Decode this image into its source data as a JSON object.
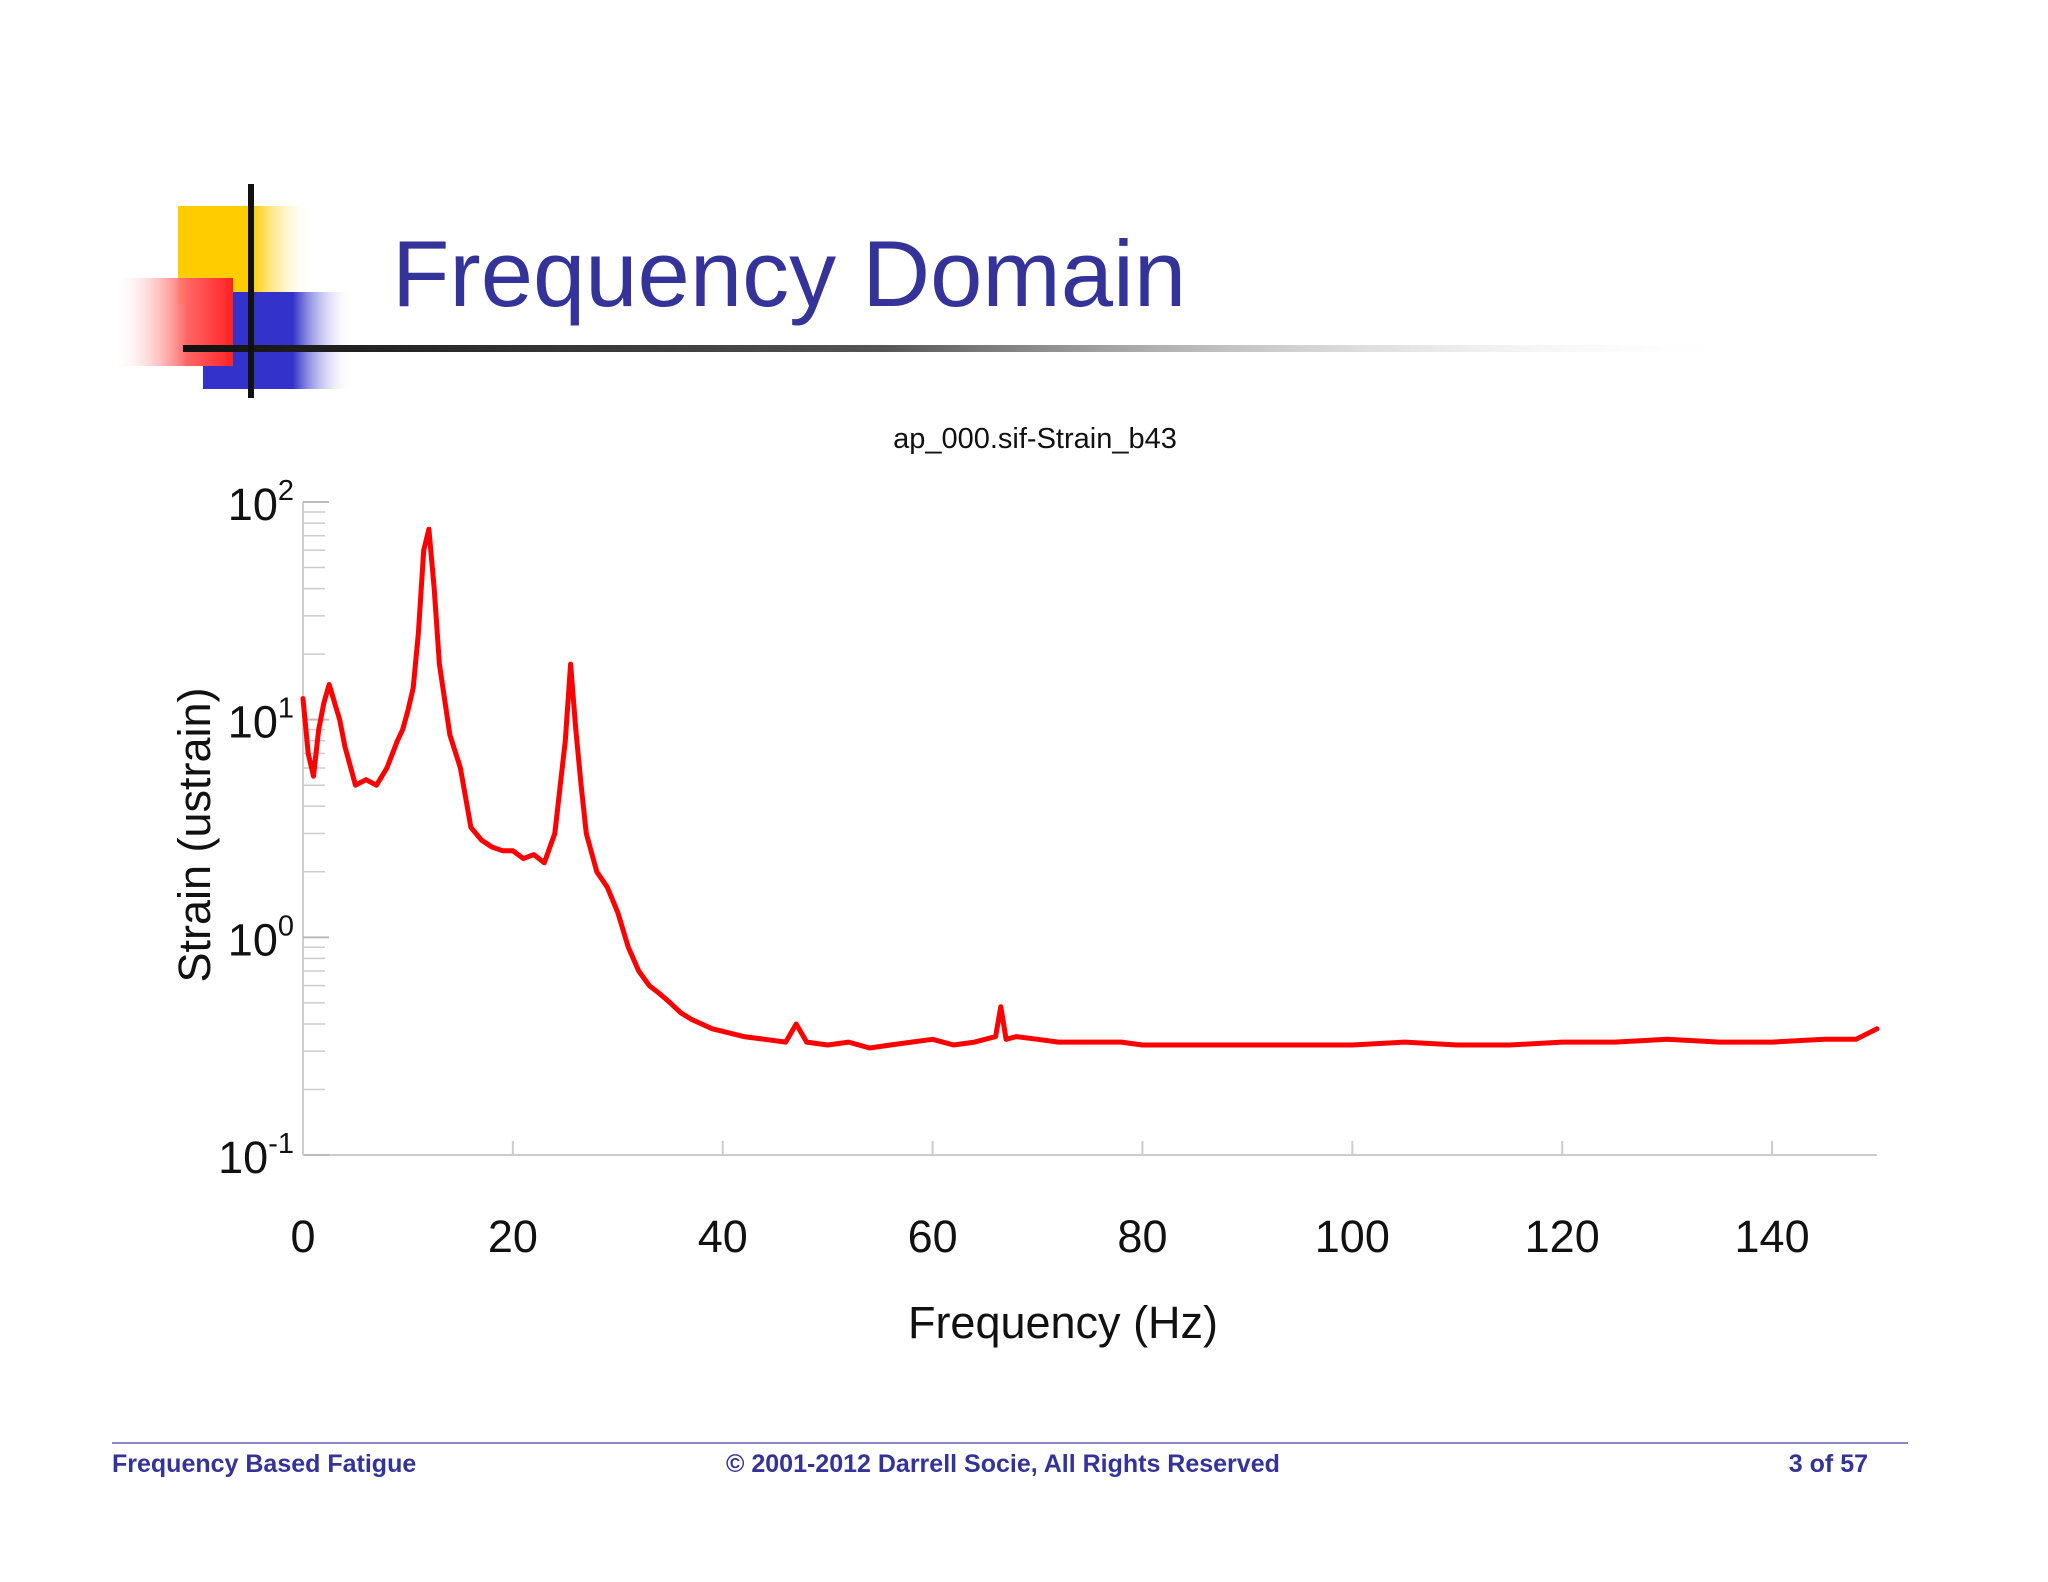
{
  "slide": {
    "title": "Frequency Domain",
    "accent_colors": {
      "title": "#333399",
      "yellow": "#ffcc00",
      "red": "#ff3333",
      "blue": "#3333cc"
    }
  },
  "footer": {
    "left": "Frequency Based Fatigue",
    "center": "© 2001-2012  Darrell Socie, All Rights Reserved",
    "right": "3 of 57"
  },
  "chart_data": {
    "type": "line",
    "title": "ap_000.sif-Strain_b43",
    "xlabel": "Frequency (Hz)",
    "ylabel": "Strain (ustrain)",
    "xlim": [
      0,
      150
    ],
    "ylim": [
      0.1,
      100
    ],
    "y_scale": "log",
    "x_ticks": [
      "0",
      "20",
      "40",
      "60",
      "80",
      "100",
      "120",
      "140"
    ],
    "y_ticks": [
      {
        "base": "10",
        "exp": "2",
        "value": 100
      },
      {
        "base": "10",
        "exp": "1",
        "value": 10
      },
      {
        "base": "10",
        "exp": "0",
        "value": 1
      },
      {
        "base": "10",
        "exp": "-1",
        "value": 0.1
      }
    ],
    "grid": false,
    "series": [
      {
        "color": "#ff0000",
        "x": [
          0,
          0.5,
          1,
          1.5,
          2,
          2.5,
          3,
          3.5,
          4,
          5,
          6,
          7,
          8,
          9,
          9.5,
          10,
          10.5,
          11,
          11.5,
          12,
          12.5,
          13,
          14,
          15,
          16,
          17,
          18,
          19,
          20,
          21,
          22,
          23,
          24,
          25,
          25.5,
          26,
          26.5,
          27,
          28,
          29,
          30,
          31,
          32,
          33,
          34,
          35,
          36,
          37,
          38,
          39,
          40,
          42,
          44,
          46,
          47,
          48,
          50,
          52,
          54,
          56,
          58,
          60,
          62,
          64,
          66,
          66.5,
          67,
          68,
          70,
          72,
          74,
          76,
          78,
          80,
          85,
          90,
          95,
          100,
          105,
          110,
          115,
          120,
          125,
          130,
          135,
          140,
          145,
          148,
          150
        ],
        "y": [
          12.5,
          7.0,
          5.5,
          9.0,
          12.0,
          14.5,
          12.0,
          10.0,
          7.5,
          5.0,
          5.3,
          5.0,
          6.0,
          8.0,
          9.0,
          11.0,
          14.0,
          25.0,
          60.0,
          75.0,
          40.0,
          18.0,
          8.5,
          6.0,
          3.2,
          2.8,
          2.6,
          2.5,
          2.5,
          2.3,
          2.4,
          2.2,
          3.0,
          8.0,
          18.0,
          9.0,
          5.0,
          3.0,
          2.0,
          1.7,
          1.3,
          0.9,
          0.7,
          0.6,
          0.55,
          0.5,
          0.45,
          0.42,
          0.4,
          0.38,
          0.37,
          0.35,
          0.34,
          0.33,
          0.4,
          0.33,
          0.32,
          0.33,
          0.31,
          0.32,
          0.33,
          0.34,
          0.32,
          0.33,
          0.35,
          0.48,
          0.34,
          0.35,
          0.34,
          0.33,
          0.33,
          0.33,
          0.33,
          0.32,
          0.32,
          0.32,
          0.32,
          0.32,
          0.33,
          0.32,
          0.32,
          0.33,
          0.33,
          0.34,
          0.33,
          0.33,
          0.34,
          0.34,
          0.38
        ]
      }
    ]
  }
}
